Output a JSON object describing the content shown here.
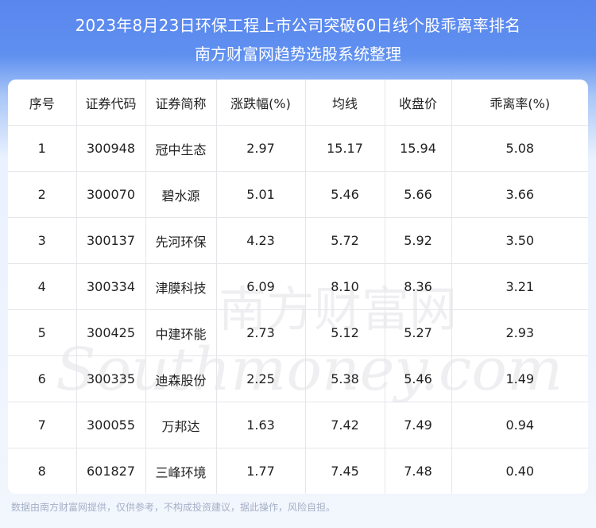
{
  "title_line1": "2023年8月23日环保工程上市公司突破60日线个股乖离率排名",
  "title_line2": "南方财富网趋势选股系统整理",
  "columns": [
    "序号",
    "证券代码",
    "证券简称",
    "涨跌幅(%)",
    "均线",
    "收盘价",
    "乖离率(%)"
  ],
  "rows": [
    [
      "1",
      "300948",
      "冠中生态",
      "2.97",
      "15.17",
      "15.94",
      "5.08"
    ],
    [
      "2",
      "300070",
      "碧水源",
      "5.01",
      "5.46",
      "5.66",
      "3.66"
    ],
    [
      "3",
      "300137",
      "先河环保",
      "4.23",
      "5.72",
      "5.92",
      "3.50"
    ],
    [
      "4",
      "300334",
      "津膜科技",
      "6.09",
      "8.10",
      "8.36",
      "3.21"
    ],
    [
      "5",
      "300425",
      "中建环能",
      "2.73",
      "5.12",
      "5.27",
      "2.93"
    ],
    [
      "6",
      "300335",
      "迪森股份",
      "2.25",
      "5.38",
      "5.46",
      "1.49"
    ],
    [
      "7",
      "300055",
      "万邦达",
      "1.63",
      "7.42",
      "7.49",
      "0.94"
    ],
    [
      "8",
      "601827",
      "三峰环境",
      "1.77",
      "7.45",
      "7.48",
      "0.40"
    ]
  ],
  "watermark_cn": "南方财富网",
  "watermark_en": "Southmoney.com",
  "footer": "数据由南方财富网提供，仅供参考，不构成投资建议，据此操作，风险自担。"
}
